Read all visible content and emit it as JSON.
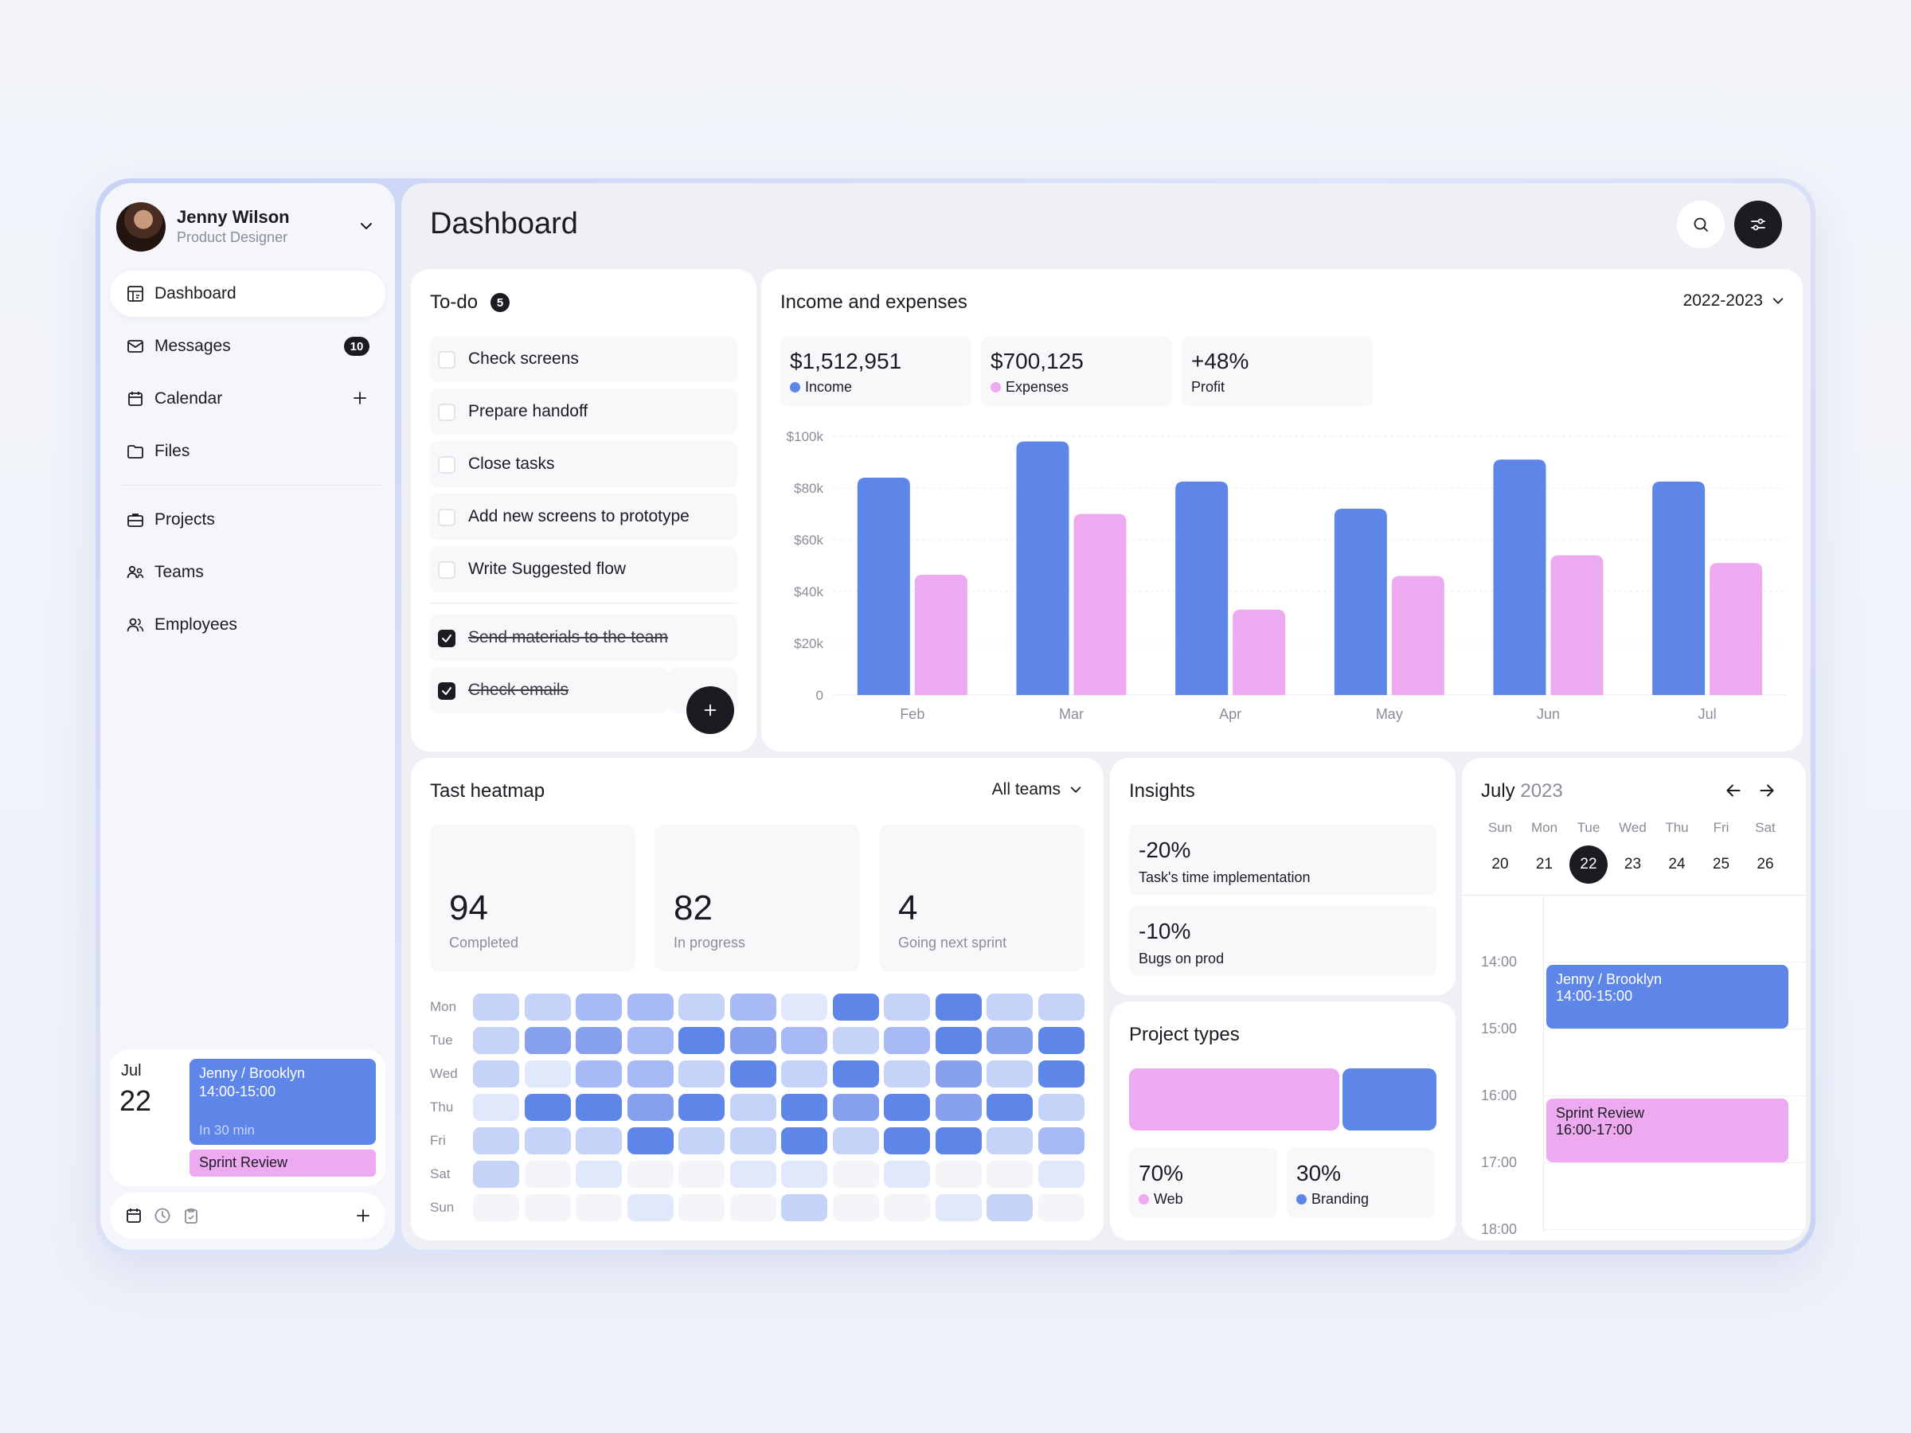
{
  "user": {
    "name": "Jenny Wilson",
    "role": "Product Designer"
  },
  "nav": [
    {
      "label": "Dashboard",
      "icon": "dashboard-icon",
      "active": true
    },
    {
      "label": "Messages",
      "icon": "mail-icon",
      "badge": "10"
    },
    {
      "label": "Calendar",
      "icon": "calendar-icon"
    },
    {
      "label": "Files",
      "icon": "folder-icon"
    },
    {
      "label": "Projects",
      "icon": "briefcase-icon"
    },
    {
      "label": "Teams",
      "icon": "teams-icon"
    },
    {
      "label": "Employees",
      "icon": "employees-icon"
    }
  ],
  "sidebar_event": {
    "month": "Jul",
    "day": "22",
    "title": "Jenny / Brooklyn",
    "time": "14:00-15:00",
    "relative": "In 30 min",
    "second": "Sprint Review"
  },
  "page_title": "Dashboard",
  "todo": {
    "title": "To-do",
    "count": "5",
    "items": [
      {
        "label": "Check screens",
        "done": false
      },
      {
        "label": "Prepare handoff",
        "done": false
      },
      {
        "label": "Close tasks",
        "done": false
      },
      {
        "label": "Add new screens to prototype",
        "done": false
      },
      {
        "label": "Write Suggested flow",
        "done": false
      },
      {
        "label": "Send materials to the team",
        "done": true
      },
      {
        "label": "Check emails",
        "done": true
      }
    ]
  },
  "income": {
    "title": "Income and expenses",
    "period": "2022-2023",
    "stats": [
      {
        "value": "$1,512,951",
        "label": "Income",
        "color": "#5e86e8"
      },
      {
        "value": "$700,125",
        "label": "Expenses",
        "color": "#eeaaf0"
      },
      {
        "value": "+48%",
        "label": "Profit"
      }
    ]
  },
  "chart_data": {
    "type": "bar",
    "categories": [
      "Feb",
      "Mar",
      "Apr",
      "May",
      "Jun",
      "Jul"
    ],
    "series": [
      {
        "name": "Income",
        "values": [
          84000,
          98000,
          82500,
          72000,
          91000,
          82500
        ],
        "color": "#5e86e8"
      },
      {
        "name": "Expenses",
        "values": [
          46500,
          70000,
          33000,
          46000,
          54000,
          51000
        ],
        "color": "#eeaaf0"
      }
    ],
    "ylim": [
      0,
      100000
    ],
    "yticks": [
      "0",
      "$20k",
      "$40k",
      "$60k",
      "$80k",
      "$100k"
    ],
    "grid": true
  },
  "heatmap": {
    "title": "Tast heatmap",
    "filter": "All teams",
    "stats": [
      {
        "value": "94",
        "label": "Completed"
      },
      {
        "value": "82",
        "label": "In progress"
      },
      {
        "value": "4",
        "label": "Going next sprint"
      }
    ],
    "days": [
      "Mon",
      "Tue",
      "Wed",
      "Thu",
      "Fri",
      "Sat",
      "Sun"
    ],
    "levels": [
      [
        2,
        2,
        3,
        3,
        2,
        3,
        1,
        5,
        2,
        5,
        2,
        2
      ],
      [
        2,
        4,
        4,
        3,
        5,
        4,
        3,
        2,
        3,
        5,
        4,
        5
      ],
      [
        2,
        1,
        3,
        3,
        2,
        5,
        2,
        5,
        2,
        4,
        2,
        5
      ],
      [
        1,
        5,
        5,
        4,
        5,
        2,
        5,
        4,
        5,
        4,
        5,
        2
      ],
      [
        2,
        2,
        2,
        5,
        2,
        2,
        5,
        2,
        5,
        5,
        2,
        3
      ],
      [
        2,
        0,
        1,
        0,
        0,
        1,
        1,
        0,
        1,
        0,
        0,
        1
      ],
      [
        0,
        0,
        0,
        1,
        0,
        0,
        2,
        0,
        0,
        1,
        2,
        0
      ]
    ],
    "colors": [
      "#f4f5f8",
      "#e2e8fb",
      "#c6d3f8",
      "#a7baf5",
      "#86a0ee",
      "#5e86e8"
    ]
  },
  "insights": {
    "title": "Insights",
    "items": [
      {
        "value": "-20%",
        "label": "Task's time implementation"
      },
      {
        "value": "-10%",
        "label": "Bugs on prod"
      }
    ]
  },
  "project_types": {
    "title": "Project types",
    "items": [
      {
        "value": "70%",
        "label": "Web",
        "share": 0.7,
        "color": "#eeaaf0"
      },
      {
        "value": "30%",
        "label": "Branding",
        "share": 0.3,
        "color": "#5e86e8"
      }
    ]
  },
  "calendar": {
    "month": "July",
    "year": "2023",
    "dows": [
      "Sun",
      "Mon",
      "Tue",
      "Wed",
      "Thu",
      "Fri",
      "Sat"
    ],
    "dates": [
      "20",
      "21",
      "22",
      "23",
      "24",
      "25",
      "26"
    ],
    "today": "22",
    "hours": [
      "14:00",
      "15:00",
      "16:00",
      "17:00",
      "18:00"
    ],
    "events": [
      {
        "title": "Jenny / Brooklyn",
        "time": "14:00-15:00",
        "color": "blue"
      },
      {
        "title": "Sprint Review",
        "time": "16:00-17:00",
        "color": "pink"
      }
    ]
  }
}
